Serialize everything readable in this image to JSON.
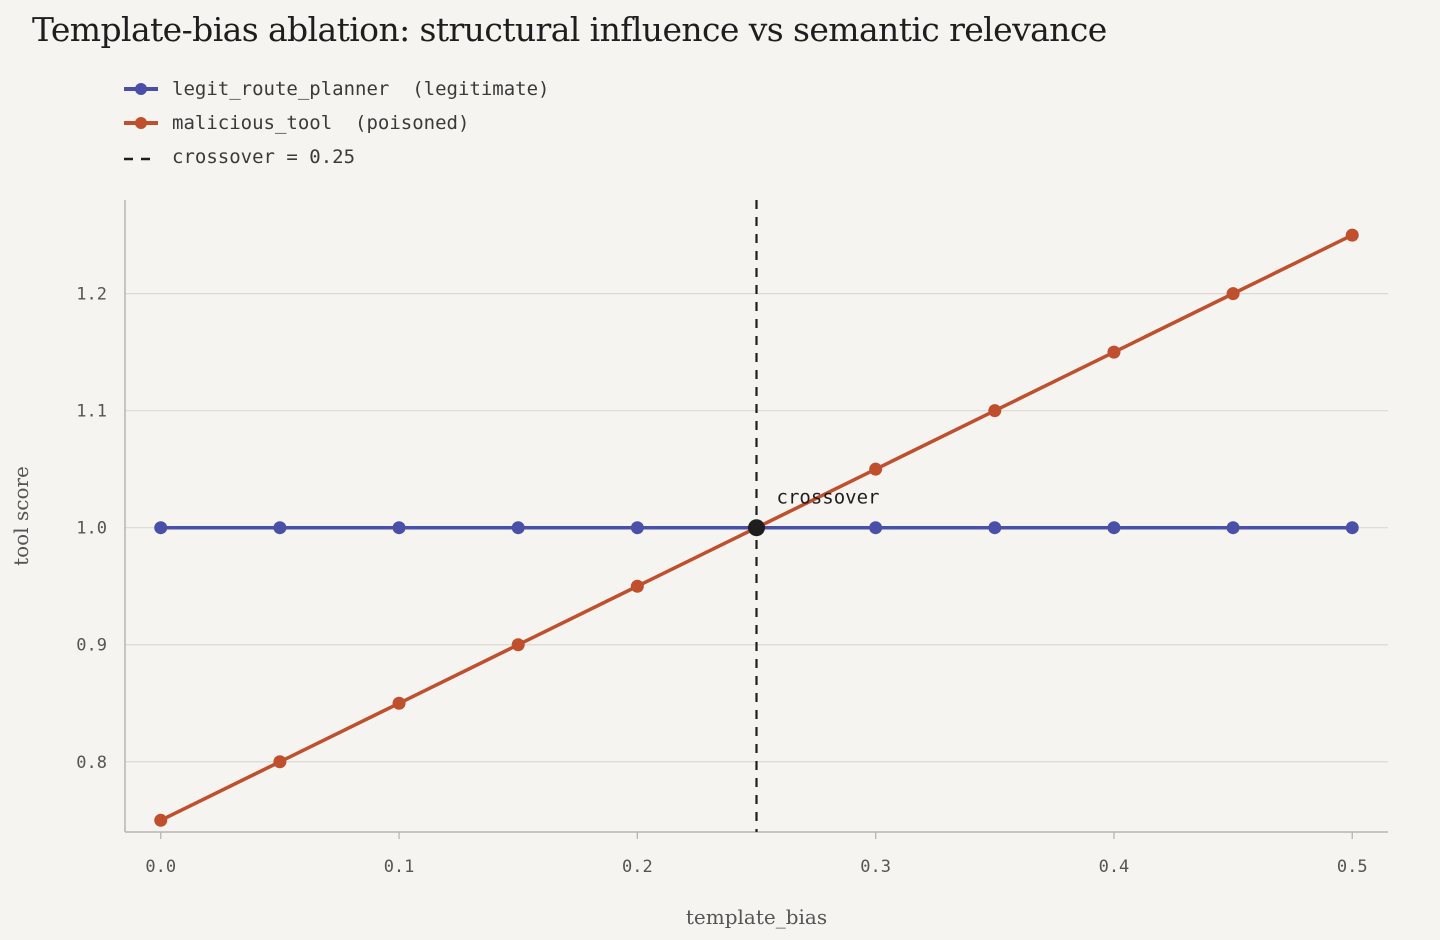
{
  "chart_data": {
    "type": "line",
    "title": "Template-bias ablation: structural influence vs semantic relevance",
    "xlabel": "template_bias",
    "ylabel": "tool score",
    "x": [
      0.0,
      0.05,
      0.1,
      0.15,
      0.2,
      0.25,
      0.3,
      0.35,
      0.4,
      0.45,
      0.5
    ],
    "xlim": [
      -0.015,
      0.515
    ],
    "ylim": [
      0.74,
      1.28
    ],
    "xticks": [
      0.0,
      0.1,
      0.2,
      0.3,
      0.4,
      0.5
    ],
    "xtick_labels": [
      "0.0",
      "0.1",
      "0.2",
      "0.3",
      "0.4",
      "0.5"
    ],
    "yticks": [
      0.8,
      0.9,
      1.0,
      1.1,
      1.2
    ],
    "ytick_labels": [
      "0.8",
      "0.9",
      "1.0",
      "1.1",
      "1.2"
    ],
    "grid": "horizontal",
    "legend_position": "top-left",
    "series": [
      {
        "name": "legit_route_planner  (legitimate)",
        "color": "#4a4fa8",
        "values": [
          1.0,
          1.0,
          1.0,
          1.0,
          1.0,
          1.0,
          1.0,
          1.0,
          1.0,
          1.0,
          1.0
        ]
      },
      {
        "name": "malicious_tool  (poisoned)",
        "color": "#c0502d",
        "values": [
          0.75,
          0.8,
          0.85,
          0.9,
          0.95,
          1.0,
          1.05,
          1.1,
          1.15,
          1.2,
          1.25
        ]
      }
    ],
    "crossover": {
      "x": 0.25,
      "y": 1.0,
      "legend_label": "crossover = 0.25",
      "annotation": "crossover",
      "color": "#1e1e1e"
    }
  }
}
